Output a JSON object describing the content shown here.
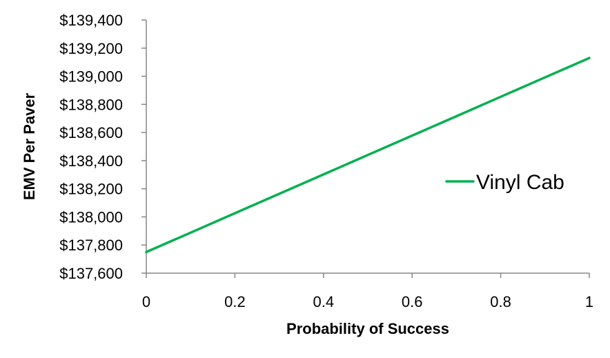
{
  "chart_data": {
    "type": "line",
    "title": "",
    "xlabel": "Probability of Success",
    "ylabel": "EMV Per Paver",
    "xlim": [
      0,
      1
    ],
    "ylim": [
      137600,
      139400
    ],
    "x_ticks": [
      0,
      0.2,
      0.4,
      0.6,
      0.8,
      1
    ],
    "x_tick_labels": [
      "0",
      "0.2",
      "0.4",
      "0.6",
      "0.8",
      "1"
    ],
    "y_ticks": [
      137600,
      137800,
      138000,
      138200,
      138400,
      138600,
      138800,
      139000,
      139200,
      139400
    ],
    "y_tick_labels": [
      "$137,600",
      "$137,800",
      "$138,000",
      "$138,200",
      "$138,400",
      "$138,600",
      "$138,800",
      "$139,000",
      "$139,200",
      "$139,400"
    ],
    "grid": false,
    "legend_position": "right",
    "series": [
      {
        "name": "Vinyl Cab",
        "color": "#00B050",
        "x": [
          0,
          0.1,
          0.2,
          0.3,
          0.4,
          0.5,
          0.6,
          0.7,
          0.8,
          0.9,
          1
        ],
        "y": [
          137750,
          137888,
          138026,
          138164,
          138302,
          138440,
          138578,
          138716,
          138854,
          138992,
          139130
        ]
      }
    ]
  }
}
